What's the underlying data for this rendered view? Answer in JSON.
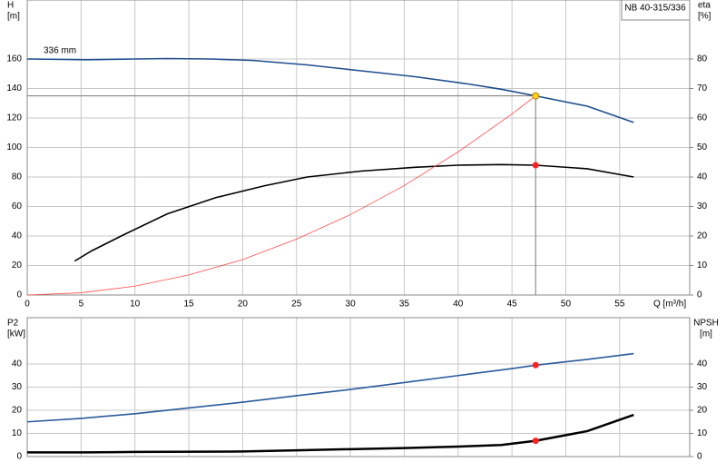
{
  "chart_data": [
    {
      "type": "line",
      "title": "NB 40-315/336",
      "xlabel": "Q [m³/h]",
      "ylabel": [
        "H",
        "[m]"
      ],
      "y2label": [
        "eta",
        "[%]"
      ],
      "xlim": [
        0,
        61.5
      ],
      "xticks": [
        0,
        5,
        10,
        15,
        20,
        25,
        30,
        35,
        40,
        45,
        50,
        55
      ],
      "ylim": [
        0,
        200
      ],
      "yticks": [
        0,
        20,
        40,
        60,
        80,
        100,
        120,
        140,
        160
      ],
      "y2lim": [
        0,
        100
      ],
      "y2ticks": [
        0,
        10,
        20,
        30,
        40,
        50,
        60,
        70,
        80
      ],
      "grid": true,
      "series": [
        {
          "name": "336 mm",
          "color": "#1f4e8c",
          "x": [
            0,
            5.6,
            10,
            13,
            17,
            21,
            26,
            31,
            36,
            41,
            44,
            47.2,
            52,
            56.3
          ],
          "values": [
            160,
            159.5,
            160,
            160.3,
            160,
            159,
            156,
            152,
            148,
            143,
            139.5,
            135,
            128,
            117
          ]
        },
        {
          "color": "#000000",
          "axis": "y2",
          "x": [
            4.4,
            6,
            9,
            13,
            17.5,
            22,
            26,
            31,
            36,
            40,
            44,
            47.2,
            52,
            56.3
          ],
          "values": [
            11.5,
            15,
            20.5,
            27.5,
            33,
            37,
            40,
            42,
            43.3,
            44,
            44.2,
            44,
            42.8,
            40
          ]
        },
        {
          "color": "#ff4d4d",
          "x": [
            0,
            5,
            10,
            15,
            20,
            25,
            30,
            35,
            40,
            45,
            47.2
          ],
          "values": [
            0,
            1.5,
            6,
            13.6,
            24,
            37.9,
            54.5,
            74.2,
            97,
            122.7,
            135
          ]
        }
      ],
      "guide": {
        "x": 47.2,
        "y": 135
      },
      "points": [
        {
          "x": 47.2,
          "y": 135,
          "color": "#ffd21f"
        },
        {
          "x": 47.2,
          "y": 44,
          "axis": "y2",
          "color": "#ff2020"
        }
      ]
    },
    {
      "type": "line",
      "ylabel": [
        "P2",
        "[kW]"
      ],
      "y2label": [
        "NPSH",
        "[m]"
      ],
      "xlim": [
        0,
        61.5
      ],
      "ylim": [
        0,
        60
      ],
      "yticks": [
        0,
        10,
        20,
        30,
        40
      ],
      "y2lim": [
        0,
        60
      ],
      "y2ticks": [
        0,
        10,
        20,
        30,
        40
      ],
      "grid": true,
      "series": [
        {
          "color": "#2a5a9a",
          "x": [
            0,
            5,
            10,
            15,
            20,
            25,
            30,
            35,
            40,
            45,
            47.2,
            52,
            56.3
          ],
          "values": [
            15,
            16.5,
            18.5,
            21,
            23.5,
            26.3,
            29,
            32,
            35,
            38,
            39.5,
            42,
            44.5
          ]
        },
        {
          "color": "#000000",
          "axis": "y2",
          "width": 2.5,
          "x": [
            0,
            5.5,
            10,
            20,
            25,
            30,
            35,
            40,
            44,
            47.2,
            52,
            56.3
          ],
          "values": [
            1.8,
            1.8,
            2,
            2.2,
            2.7,
            3.2,
            3.7,
            4.3,
            5,
            6.8,
            11,
            18
          ]
        }
      ],
      "points": [
        {
          "x": 47.2,
          "y": 39.5,
          "color": "#ff2020"
        },
        {
          "x": 47.2,
          "y": 6.8,
          "axis": "y2",
          "color": "#ff2020"
        }
      ]
    }
  ]
}
